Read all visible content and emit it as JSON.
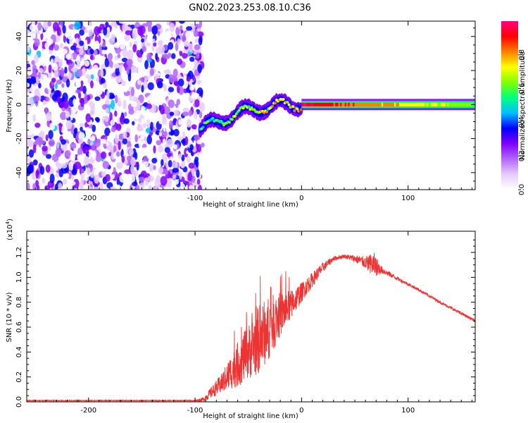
{
  "title": "GN02.2023.253.08.10.C36",
  "chart_data": [
    {
      "type": "heatmap",
      "name": "spectrogram",
      "xlabel": "Height of straight line (km)",
      "ylabel": "Frequency (Hz)",
      "xlim": [
        -258,
        163
      ],
      "ylim": [
        -50,
        49
      ],
      "xticks": [
        -200,
        -100,
        0,
        100
      ],
      "yticks": [
        -40,
        -20,
        0,
        20,
        40
      ],
      "colorbar": {
        "label": "Normalized spectral amplitude",
        "range": [
          0,
          1
        ],
        "ticks": [
          "0.0",
          "0.2",
          "0.4",
          "0.6",
          "0.8"
        ],
        "colors": [
          "#ffffff",
          "#e6ccff",
          "#b266ff",
          "#8000ff",
          "#0000ff",
          "#00bfff",
          "#00ff80",
          "#80ff00",
          "#ffff00",
          "#ff8000",
          "#ff0000",
          "#ff0080"
        ]
      },
      "regions": [
        {
          "desc": "broadband noise",
          "x": [
            -258,
            -93
          ],
          "freq": [
            -50,
            49
          ],
          "amplitude": 0.15
        },
        {
          "desc": "dispersive trace",
          "x": [
            -95,
            0
          ],
          "freq_start": -15,
          "freq_end": 0,
          "amplitude": 0.5
        },
        {
          "desc": "narrow tone",
          "x": [
            0,
            163
          ],
          "freq": 0,
          "amplitude": 0.95
        }
      ]
    },
    {
      "type": "line",
      "name": "snr",
      "xlabel": "Height of straight line (km)",
      "ylabel": "SNR (10 * v/v)",
      "scale_label": "(x10",
      "scale_exp": "4",
      "scale_close": ")",
      "xlim": [
        -258,
        163
      ],
      "ylim": [
        0,
        1.37
      ],
      "xticks": [
        -200,
        -100,
        0,
        100
      ],
      "yticks": [
        "0.0",
        "0.2",
        "0.4",
        "0.6",
        "0.8",
        "1.0",
        "1.2"
      ],
      "color": "#ee3333",
      "envelope": {
        "x": [
          -258,
          -100,
          -92,
          -75,
          -60,
          -50,
          -40,
          -30,
          -20,
          -10,
          0,
          10,
          20,
          30,
          40,
          50,
          60,
          68,
          75,
          90,
          110,
          130,
          150,
          163
        ],
        "y": [
          0.01,
          0.01,
          0.02,
          0.15,
          0.3,
          0.4,
          0.5,
          0.6,
          0.7,
          0.78,
          0.88,
          0.98,
          1.08,
          1.15,
          1.17,
          1.15,
          1.12,
          1.1,
          1.06,
          0.99,
          0.9,
          0.8,
          0.71,
          0.65
        ],
        "noise": [
          0.004,
          0.004,
          0.02,
          0.08,
          0.18,
          0.22,
          0.28,
          0.25,
          0.18,
          0.12,
          0.08,
          0.06,
          0.04,
          0.02,
          0.015,
          0.03,
          0.05,
          0.1,
          0.03,
          0.015,
          0.012,
          0.012,
          0.012,
          0.012
        ]
      }
    }
  ]
}
